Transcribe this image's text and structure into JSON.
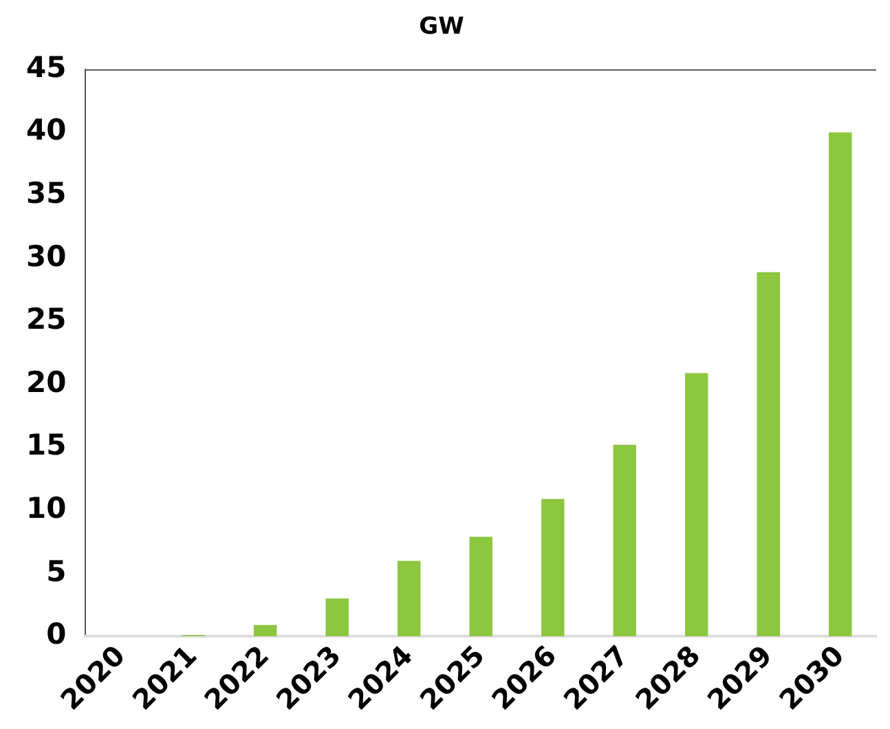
{
  "chart_data": {
    "type": "bar",
    "title": "GW",
    "categories": [
      "2020",
      "2021",
      "2022",
      "2023",
      "2024",
      "2025",
      "2026",
      "2027",
      "2028",
      "2029",
      "2030"
    ],
    "values": [
      0,
      0.1,
      0.9,
      3.0,
      6.0,
      7.9,
      10.9,
      15.2,
      20.9,
      28.9,
      40.0
    ],
    "color": "#8dc63f",
    "ylim": [
      0,
      45
    ],
    "yticks": [
      0,
      5,
      10,
      15,
      20,
      25,
      30,
      35,
      40,
      45
    ],
    "grid": false
  }
}
